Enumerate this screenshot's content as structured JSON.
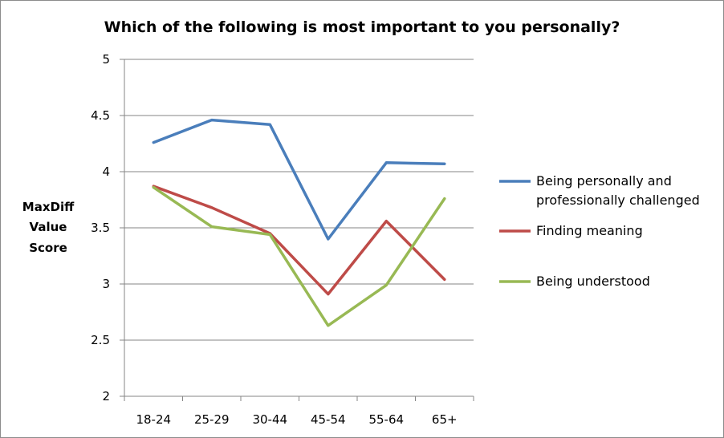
{
  "chart_data": {
    "type": "line",
    "title": "Which of the following is most important to you personally?",
    "xlabel": "",
    "ylabel": [
      "MaxDiff",
      "Value",
      "Score"
    ],
    "categories": [
      "18-24",
      "25-29",
      "30-44",
      "45-54",
      "55-64",
      "65+"
    ],
    "ylim": [
      2,
      5
    ],
    "yticks": [
      2,
      2.5,
      3,
      3.5,
      4,
      4.5,
      5
    ],
    "ytick_labels": [
      "2",
      "2.5",
      "3",
      "3.5",
      "4",
      "4.5",
      "5"
    ],
    "grid": true,
    "legend_placement": "right",
    "series": [
      {
        "name": [
          "Being personally and",
          "professionally challenged"
        ],
        "color": "#4a7ebb",
        "values": [
          4.26,
          4.46,
          4.42,
          3.4,
          4.08,
          4.07
        ]
      },
      {
        "name": [
          "Finding meaning"
        ],
        "color": "#be4b48",
        "values": [
          3.87,
          3.68,
          3.45,
          2.91,
          3.56,
          3.04
        ]
      },
      {
        "name": [
          "Being understood"
        ],
        "color": "#98b954",
        "values": [
          3.86,
          3.51,
          3.44,
          2.63,
          2.99,
          3.76
        ]
      }
    ]
  }
}
